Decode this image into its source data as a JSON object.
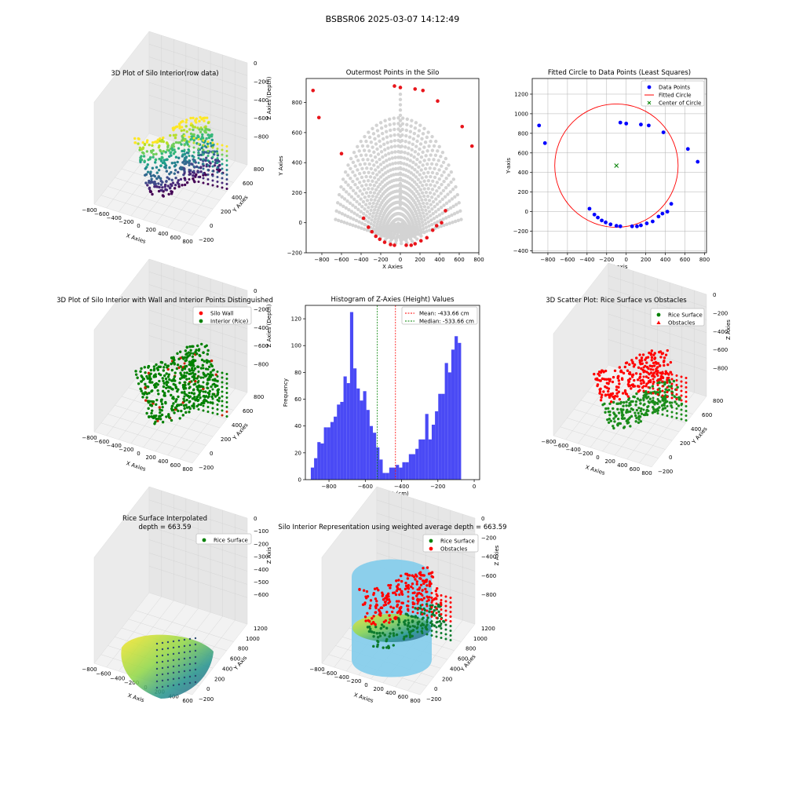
{
  "figure": {
    "suptitle": "BSBSR06 2025-03-07 14:12:49"
  },
  "chart_data": [
    {
      "id": "raw3d",
      "type": "scatter",
      "projection": "3d",
      "title": "3D Plot of Silo Interior(row data)",
      "xlabel": "X Axies",
      "ylabel": "Y Axies",
      "zlabel": "Z Axies (Depth)",
      "xticks": [
        "−800",
        "−600",
        "−400",
        "−200",
        "0",
        "200",
        "400",
        "600",
        "800"
      ],
      "yticks": [
        "−200",
        "0",
        "200",
        "400",
        "600",
        "800"
      ],
      "zticks": [
        "0",
        "−200",
        "−400",
        "−600",
        "−800"
      ],
      "colormap": "viridis"
    },
    {
      "id": "outer",
      "type": "scatter",
      "title": "Outermost Points in the Silo",
      "xlabel": "X Axies",
      "ylabel": "Y Axies",
      "xlim": [
        -960,
        800
      ],
      "ylim": [
        -200,
        960
      ],
      "xticks": [
        "−800",
        "−600",
        "−400",
        "−200",
        "0",
        "200",
        "400",
        "600",
        "800"
      ],
      "yticks": [
        "−200",
        "0",
        "200",
        "400",
        "600",
        "800"
      ],
      "background_color": "#d3d3d3",
      "outer_color": "#e8151b",
      "outer_points": [
        [
          -890,
          880
        ],
        [
          -830,
          700
        ],
        [
          -600,
          460
        ],
        [
          -375,
          30
        ],
        [
          -325,
          -30
        ],
        [
          -290,
          -60
        ],
        [
          -250,
          -90
        ],
        [
          -210,
          -110
        ],
        [
          -160,
          -130
        ],
        [
          -100,
          -145
        ],
        [
          -60,
          -150
        ],
        [
          60,
          -150
        ],
        [
          110,
          -150
        ],
        [
          150,
          -140
        ],
        [
          210,
          -120
        ],
        [
          270,
          -100
        ],
        [
          330,
          -50
        ],
        [
          370,
          -20
        ],
        [
          420,
          0
        ],
        [
          460,
          80
        ],
        [
          630,
          640
        ],
        [
          730,
          510
        ],
        [
          -60,
          910
        ],
        [
          0,
          900
        ],
        [
          150,
          890
        ],
        [
          230,
          880
        ],
        [
          380,
          810
        ]
      ]
    },
    {
      "id": "circle",
      "type": "scatter",
      "title": "Fitted Circle to Data Points (Least Squares)",
      "xlabel": "X-axis",
      "ylabel": "Y-axis",
      "xlim": [
        -960,
        820
      ],
      "ylim": [
        -420,
        1360
      ],
      "xticks": [
        "−800",
        "−600",
        "−400",
        "−200",
        "0",
        "200",
        "400",
        "600",
        "800"
      ],
      "yticks": [
        "−400",
        "−200",
        "0",
        "200",
        "400",
        "600",
        "800",
        "1000",
        "1200"
      ],
      "legend": [
        "Data Points",
        "Fitted Circle",
        "Center of Circle"
      ],
      "legend_position": "top-right",
      "points": [
        [
          -890,
          880
        ],
        [
          -830,
          700
        ],
        [
          -375,
          30
        ],
        [
          -325,
          -30
        ],
        [
          -290,
          -60
        ],
        [
          -250,
          -90
        ],
        [
          -210,
          -110
        ],
        [
          -160,
          -130
        ],
        [
          -100,
          -145
        ],
        [
          -60,
          -150
        ],
        [
          60,
          -150
        ],
        [
          110,
          -150
        ],
        [
          150,
          -140
        ],
        [
          210,
          -120
        ],
        [
          270,
          -100
        ],
        [
          330,
          -50
        ],
        [
          370,
          -20
        ],
        [
          420,
          0
        ],
        [
          460,
          80
        ],
        [
          630,
          640
        ],
        [
          730,
          510
        ],
        [
          -60,
          910
        ],
        [
          0,
          900
        ],
        [
          150,
          890
        ],
        [
          230,
          880
        ],
        [
          380,
          810
        ]
      ],
      "circle": {
        "cx": -100,
        "cy": 470,
        "r": 630
      },
      "grid": true
    },
    {
      "id": "wall3d",
      "type": "scatter",
      "projection": "3d",
      "title": "3D Plot of Silo Interior with Wall and Interior Points Distinguished",
      "xlabel": "X Axies",
      "ylabel": "Y Axies",
      "zlabel": "Z Axies (Depth)",
      "legend": [
        "Silo Wall",
        "Interior (Rice)"
      ],
      "legend_position": "top-right",
      "xticks": [
        "−800",
        "−600",
        "−400",
        "−200",
        "0",
        "200",
        "400",
        "600",
        "800"
      ],
      "yticks": [
        "−200",
        "0",
        "200",
        "400",
        "600",
        "800"
      ],
      "zticks": [
        "0",
        "−200",
        "−400",
        "−600",
        "−800"
      ]
    },
    {
      "id": "hist",
      "type": "bar",
      "title": "Histogram of Z-Axies (Height) Values",
      "xlabel": "Height (cm)",
      "ylabel": "Frequency",
      "xlim": [
        -930,
        30
      ],
      "ylim": [
        0,
        130
      ],
      "xticks": [
        "−800",
        "−600",
        "−400",
        "−200",
        "0"
      ],
      "xtick_values": [
        -800,
        -600,
        -400,
        -200,
        0
      ],
      "yticks": [
        "0",
        "20",
        "40",
        "60",
        "80",
        "100",
        "120"
      ],
      "ytick_values": [
        0,
        20,
        40,
        60,
        80,
        100,
        120
      ],
      "bin_start": -900,
      "bin_width": 18,
      "values": [
        9,
        16,
        28,
        27,
        39,
        39,
        43,
        47,
        56,
        58,
        77,
        72,
        125,
        83,
        68,
        59,
        66,
        52,
        40,
        35,
        24,
        15,
        5,
        5,
        9,
        9,
        11,
        9,
        13,
        13,
        19,
        19,
        23,
        30,
        30,
        49,
        30,
        41,
        51,
        64,
        64,
        87,
        80,
        97,
        107,
        102
      ],
      "mean": -433.66,
      "median": -533.66,
      "legend": [
        "Mean: -433.66 cm",
        "Median: -533.66 cm"
      ],
      "legend_position": "top-right",
      "bar_color": "#4a4af5"
    },
    {
      "id": "obs3d",
      "type": "scatter",
      "projection": "3d",
      "title": "3D Scatter Plot: Rice Surface vs Obstacles",
      "xlabel": "X Axies",
      "ylabel": "Y Axies",
      "zlabel": "Z Axies",
      "legend": [
        "Rice Surface",
        "Obstacles"
      ],
      "legend_position": "top-right",
      "xticks": [
        "−800",
        "−600",
        "−400",
        "−200",
        "0",
        "200",
        "400",
        "600",
        "800"
      ],
      "yticks": [
        "−200",
        "0",
        "200",
        "400",
        "600",
        "800"
      ],
      "zticks": [
        "0",
        "−200",
        "−400",
        "−600",
        "−800"
      ]
    },
    {
      "id": "interp3d",
      "type": "scatter",
      "projection": "3d",
      "title": "Rice Surface Interpolated",
      "subtitle": "depth = 663.59",
      "xlabel": "X Axis",
      "ylabel": "Y Axis",
      "zlabel": "Z Axis",
      "legend": [
        "Rice Surface"
      ],
      "legend_position": "top-right",
      "xticks": [
        "−800",
        "−600",
        "−400",
        "−200",
        "0",
        "200",
        "400",
        "600"
      ],
      "yticks": [
        "−200",
        "0",
        "200",
        "400",
        "600",
        "800",
        "1000",
        "1200"
      ],
      "zticks": [
        "0",
        "−100",
        "−200",
        "−300",
        "−400",
        "−500",
        "−600"
      ]
    },
    {
      "id": "silo3d",
      "type": "scatter",
      "projection": "3d",
      "title": "Silo Interior Representation using weighted average depth = 663.59",
      "xlabel": "X Axies",
      "ylabel": "Y Axies",
      "zlabel": "Z Axies",
      "legend": [
        "Rice Surface",
        "Obstacles"
      ],
      "legend_position": "top-right",
      "xticks": [
        "−800",
        "−600",
        "−400",
        "−200",
        "0",
        "200",
        "400",
        "600",
        "800"
      ],
      "yticks": [
        "−200",
        "0",
        "200",
        "400",
        "600",
        "800",
        "1000",
        "1200"
      ],
      "zticks": [
        "0",
        "−200",
        "−400",
        "−600",
        "−800"
      ]
    }
  ]
}
